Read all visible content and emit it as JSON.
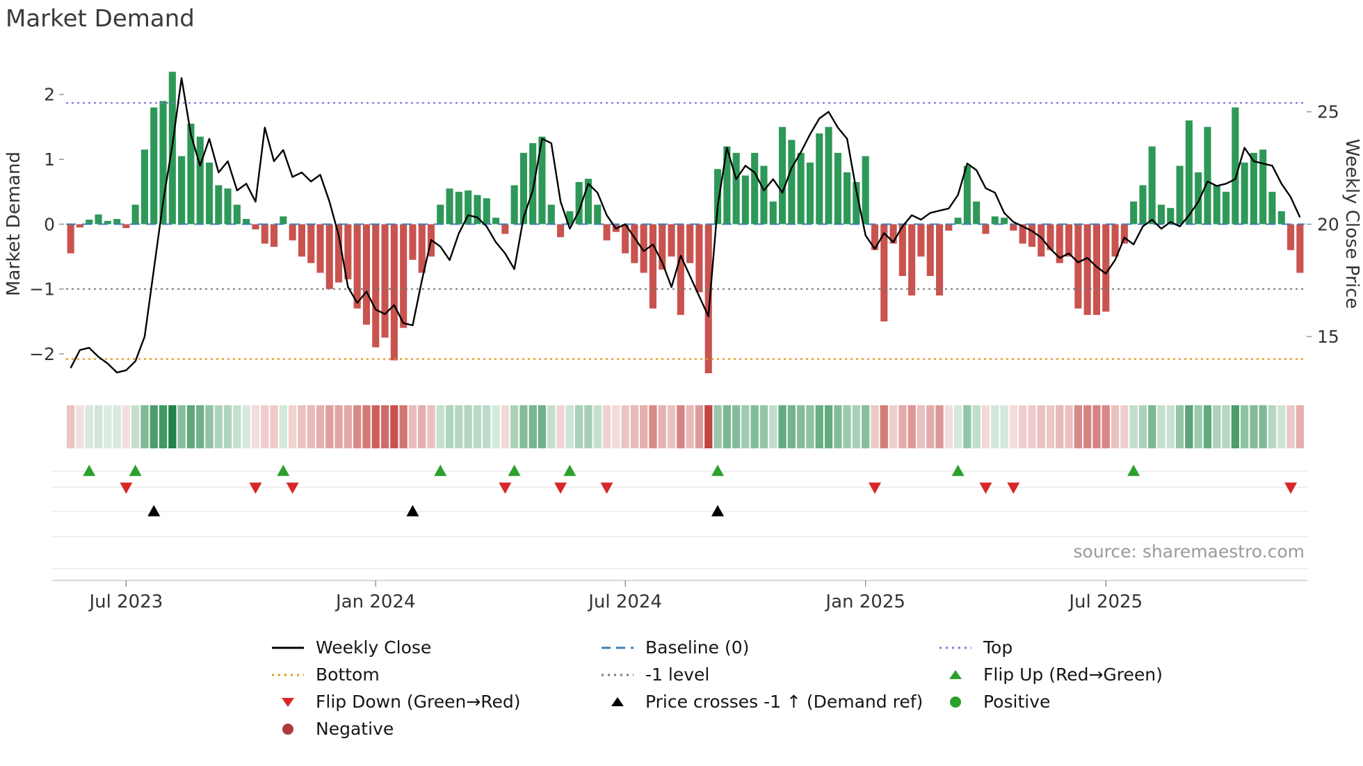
{
  "title": "Market Demand",
  "source": "source: sharemaestro.com",
  "chart_data": {
    "type": "bar+line",
    "title": "Market Demand",
    "x_axis": {
      "tick_labels": [
        "Jul 2023",
        "Jan 2024",
        "Jul 2024",
        "Jan 2025",
        "Jul 2025"
      ],
      "tick_indices": [
        6,
        33,
        60,
        86,
        112
      ]
    },
    "left_axis": {
      "label": "Market Demand",
      "tick_values": [
        2,
        1,
        0,
        -1,
        -2
      ],
      "tick_labels": [
        "2",
        "1",
        "0",
        "−1",
        "−2"
      ],
      "ylim": [
        -2.6,
        2.6
      ]
    },
    "right_axis": {
      "label": "Weekly Close Price",
      "tick_values": [
        25,
        20,
        15
      ],
      "tick_labels": [
        "25",
        "20",
        "15"
      ],
      "ylim": [
        12.5,
        27.5
      ]
    },
    "reference_lines": {
      "baseline": 0,
      "top": 1.87,
      "minus1": -1,
      "bottom": -2.08
    },
    "series": {
      "market_demand": [
        -0.45,
        -0.05,
        0.07,
        0.15,
        0.05,
        0.08,
        -0.06,
        0.3,
        1.15,
        1.8,
        1.9,
        2.35,
        1.05,
        1.55,
        1.35,
        0.95,
        0.6,
        0.55,
        0.3,
        0.08,
        -0.08,
        -0.3,
        -0.35,
        0.12,
        -0.25,
        -0.5,
        -0.6,
        -0.75,
        -1.0,
        -0.9,
        -0.85,
        -1.3,
        -1.55,
        -1.9,
        -1.75,
        -2.1,
        -1.6,
        -0.55,
        -0.75,
        -0.5,
        0.3,
        0.55,
        0.5,
        0.52,
        0.45,
        0.4,
        0.1,
        -0.15,
        0.6,
        1.1,
        1.25,
        1.35,
        0.3,
        -0.2,
        0.2,
        0.65,
        0.7,
        0.3,
        -0.25,
        -0.12,
        -0.45,
        -0.6,
        -0.75,
        -1.3,
        -0.7,
        -0.5,
        -1.4,
        -0.6,
        -1.05,
        -2.3,
        0.85,
        1.2,
        1.1,
        0.75,
        1.1,
        0.9,
        0.35,
        1.5,
        1.3,
        1.1,
        0.95,
        1.4,
        1.5,
        1.1,
        0.8,
        0.65,
        1.05,
        -0.4,
        -1.5,
        -0.3,
        -0.8,
        -1.1,
        -0.5,
        -0.8,
        -1.1,
        -0.1,
        0.1,
        0.9,
        0.35,
        -0.15,
        0.12,
        0.1,
        -0.1,
        -0.3,
        -0.35,
        -0.5,
        -0.4,
        -0.6,
        -0.5,
        -1.3,
        -1.4,
        -1.4,
        -1.35,
        -0.5,
        -0.3,
        0.35,
        0.6,
        1.2,
        0.3,
        0.25,
        0.9,
        1.6,
        0.8,
        1.5,
        0.6,
        0.5,
        1.8,
        0.95,
        1.1,
        1.15,
        0.5,
        0.2,
        -0.4,
        -0.75
      ],
      "weekly_close": [
        13.6,
        14.4,
        14.5,
        14.1,
        13.8,
        13.4,
        13.5,
        13.9,
        15.0,
        18.0,
        21.0,
        23.5,
        26.5,
        24.0,
        22.6,
        23.8,
        22.3,
        22.8,
        21.5,
        21.8,
        21.0,
        24.3,
        22.8,
        23.3,
        22.1,
        22.3,
        21.9,
        22.2,
        21.0,
        19.5,
        17.2,
        16.5,
        17.0,
        16.2,
        16.0,
        16.4,
        15.6,
        15.5,
        17.5,
        19.3,
        19.0,
        18.4,
        19.6,
        20.4,
        20.3,
        19.9,
        19.2,
        18.7,
        18.0,
        20.3,
        21.5,
        23.8,
        23.6,
        21.0,
        19.8,
        20.6,
        21.8,
        21.4,
        20.4,
        19.8,
        20.0,
        19.4,
        18.8,
        19.1,
        18.3,
        17.2,
        18.6,
        17.7,
        16.8,
        15.9,
        20.8,
        23.4,
        22.0,
        22.6,
        22.3,
        21.5,
        22.0,
        21.4,
        22.5,
        23.2,
        24.0,
        24.7,
        25.0,
        24.3,
        23.8,
        21.5,
        19.5,
        18.9,
        19.6,
        19.2,
        19.9,
        20.4,
        20.2,
        20.5,
        20.6,
        20.7,
        21.3,
        22.7,
        22.4,
        21.6,
        21.4,
        20.5,
        20.1,
        19.9,
        19.7,
        19.4,
        18.9,
        18.5,
        18.7,
        18.3,
        18.5,
        18.1,
        17.8,
        18.4,
        19.4,
        19.1,
        19.9,
        20.2,
        19.8,
        20.1,
        19.9,
        20.4,
        21.0,
        21.9,
        21.7,
        21.8,
        22.0,
        23.4,
        22.8,
        22.7,
        22.6,
        21.8,
        21.2,
        20.3
      ]
    },
    "markers": {
      "flip_up_indices": [
        2,
        7,
        23,
        40,
        48,
        54,
        70,
        96,
        115
      ],
      "flip_down_indices": [
        6,
        20,
        24,
        47,
        53,
        58,
        87,
        99,
        102,
        132
      ],
      "price_cross_indices": [
        9,
        37,
        70
      ]
    },
    "heatmap": "demand_sign_intensity",
    "colors": {
      "bar_positive": "#2e9858",
      "bar_negative": "#c9534f",
      "line": "#000000",
      "baseline": "#3b7fb8",
      "top": "#8074d8",
      "bottom": "#e8941a",
      "minus1": "#777777",
      "flip_up": "#2ca02c",
      "flip_down": "#d62728",
      "price_cross": "#000000",
      "positive_dot": "#2ca02c",
      "negative_dot": "#b03a3a",
      "heat_positive": "#1f8447",
      "heat_negative": "#c04340"
    }
  },
  "legend": {
    "weekly_close": "Weekly Close",
    "baseline": "Baseline (0)",
    "top": "Top",
    "bottom": "Bottom",
    "minus1_level": "-1 level",
    "flip_up": "Flip Up (Red→Green)",
    "flip_down": "Flip Down (Green→Red)",
    "price_cross": "Price crosses -1 ↑ (Demand ref)",
    "positive": "Positive",
    "negative": "Negative"
  }
}
